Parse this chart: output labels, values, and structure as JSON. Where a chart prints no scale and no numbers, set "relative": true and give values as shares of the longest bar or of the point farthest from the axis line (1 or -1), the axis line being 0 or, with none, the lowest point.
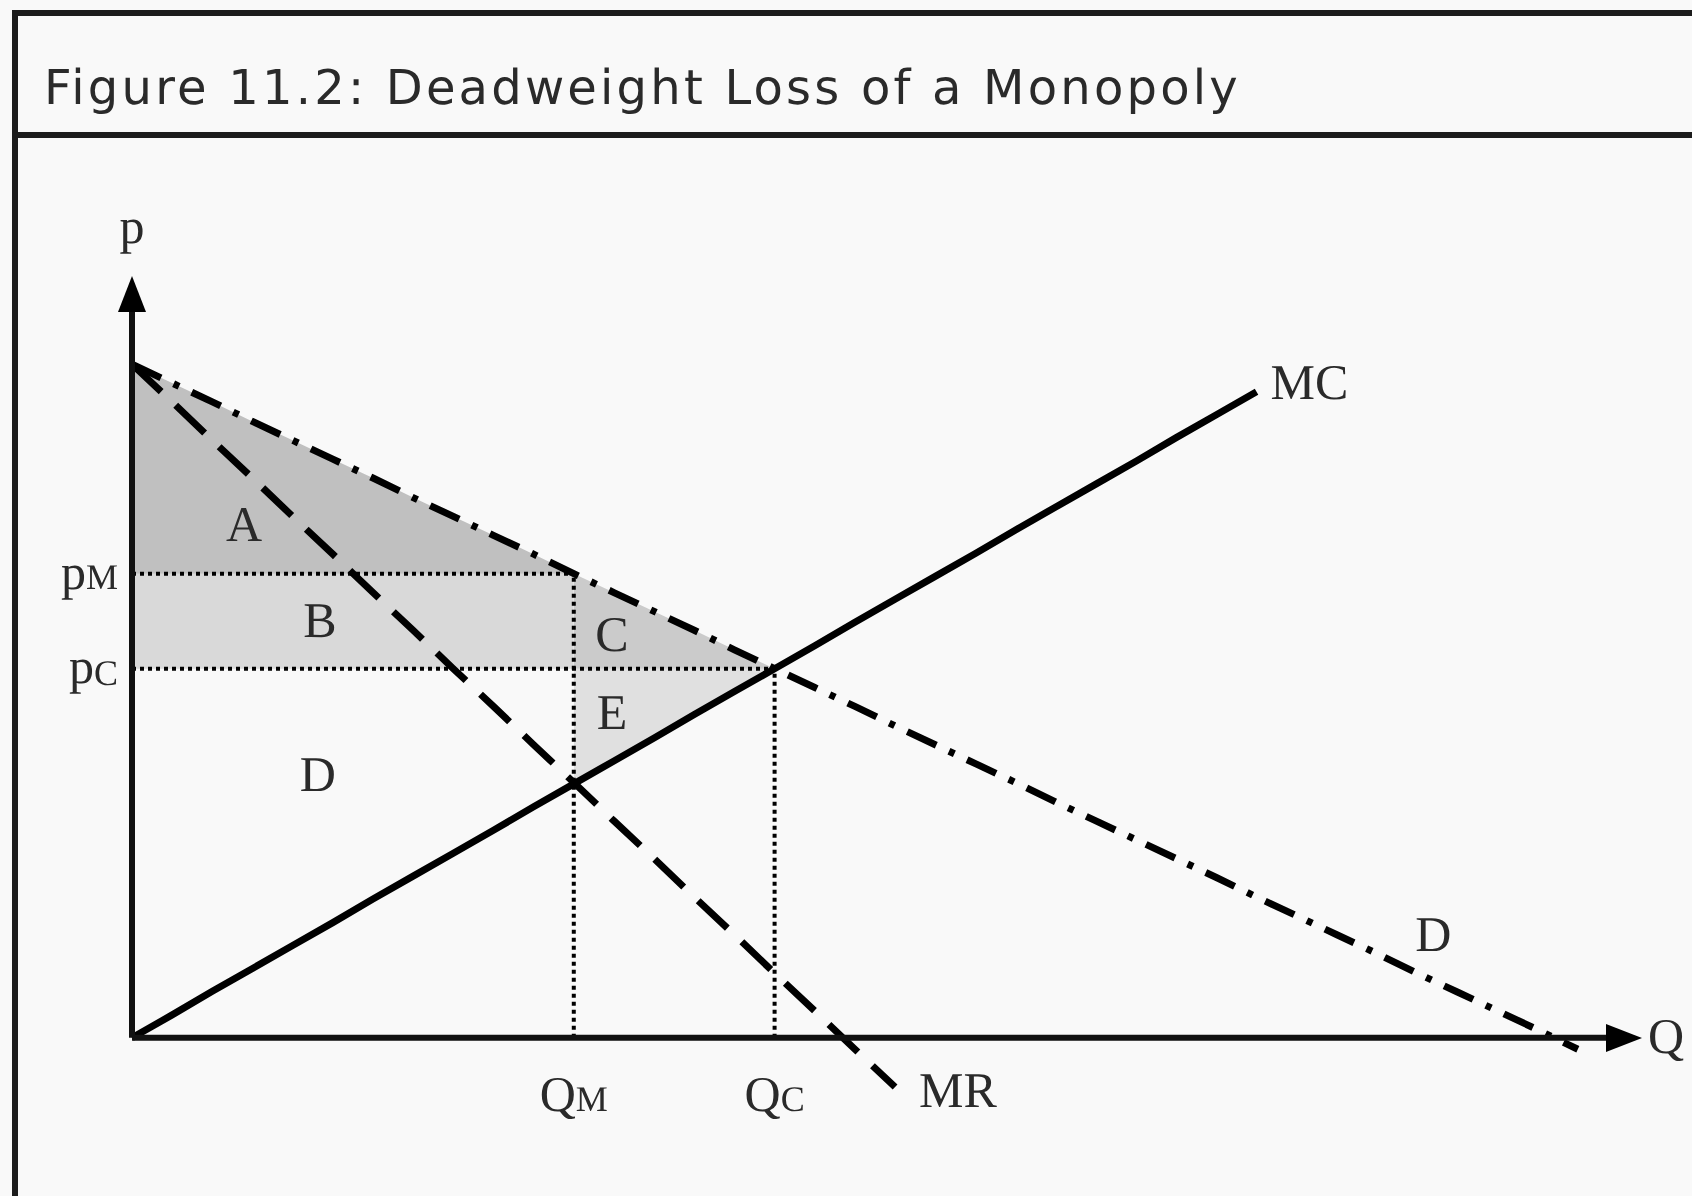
{
  "chart_data": {
    "type": "line",
    "title": "Figure 11.2: Deadweight Loss of a Monopoly",
    "xlabel": "Q",
    "ylabel": "p",
    "relative": true,
    "tick_labels": "x",
    "categories": [
      null,
      null,
      null,
      null,
      null,
      null,
      null,
      null,
      null,
      null,
      null,
      "Q$_{M}$",
      null,
      null,
      null,
      null,
      "Q$_{C}$",
      null,
      null,
      null,
      null,
      null,
      null,
      null,
      null,
      null,
      null,
      null,
      null,
      null,
      null,
      null,
      null,
      null,
      null,
      null,
      null,
      null
    ],
    "series": [
      {
        "name": "D",
        "color": "#000000",
        "line_style": "dashdot",
        "values": [
          1,
          0.972,
          0.944,
          0.915,
          0.887,
          0.859,
          0.831,
          0.802,
          0.774,
          0.746,
          0.718,
          0.689,
          0.661,
          0.633,
          0.605,
          0.576,
          0.548,
          0.52,
          0.492,
          0.463,
          0.435,
          0.407,
          0.379,
          0.35,
          0.322,
          0.294,
          0.266,
          0.238,
          0.209,
          0.181,
          0.153,
          0.125,
          0.096,
          0.068,
          0.04,
          0.012,
          -0.017,
          null
        ]
      },
      {
        "name": "MR",
        "color": "#000000",
        "line_style": "dashed",
        "values": [
          1,
          0.944,
          0.887,
          0.831,
          0.774,
          0.718,
          0.661,
          0.605,
          0.548,
          0.492,
          0.435,
          0.379,
          0.322,
          0.266,
          0.209,
          0.153,
          0.096,
          0.04,
          -0.017,
          -0.073,
          null,
          null,
          null,
          null,
          null,
          null,
          null,
          null,
          null,
          null,
          null,
          null,
          null,
          null,
          null,
          null,
          null,
          null
        ]
      },
      {
        "name": "MC",
        "color": "#000000",
        "line_style": "solid",
        "values": [
          0,
          0.034,
          0.069,
          0.103,
          0.137,
          0.171,
          0.206,
          0.24,
          0.274,
          0.308,
          0.343,
          0.377,
          0.411,
          0.445,
          0.48,
          0.514,
          0.548,
          0.582,
          0.617,
          0.651,
          0.685,
          0.719,
          0.754,
          0.788,
          0.822,
          0.856,
          0.891,
          0.925,
          0.959,
          null,
          null,
          null,
          null,
          null,
          null,
          null,
          null,
          null
        ]
      },
      {
        "name": "p$_{M}$",
        "color": "#000000",
        "line_style": "dotted",
        "values": [
          0.689,
          0.689,
          0.689,
          0.689,
          0.689,
          0.689,
          0.689,
          0.689,
          0.689,
          0.689,
          0.689,
          0.689,
          null,
          null,
          null,
          null,
          null,
          null,
          null,
          null,
          null,
          null,
          null,
          null,
          null,
          null,
          null,
          null,
          null,
          null,
          null,
          null,
          null,
          null,
          null,
          null,
          null,
          null
        ]
      },
      {
        "name": "p$_{C}$",
        "color": "#000000",
        "line_style": "dotted",
        "values": [
          0.548,
          0.548,
          0.548,
          0.548,
          0.548,
          0.548,
          0.548,
          0.548,
          0.548,
          0.548,
          0.548,
          0.548,
          0.548,
          0.548,
          0.548,
          0.548,
          0.548,
          null,
          null,
          null,
          null,
          null,
          null,
          null,
          null,
          null,
          null,
          null,
          null,
          null,
          null,
          null,
          null,
          null,
          null,
          null,
          null,
          null
        ]
      },
      {
        "type": "area",
        "color": "#c0c0c0",
        "values": [
          null,
          null,
          null,
          null,
          null,
          null,
          null,
          null,
          null,
          null,
          null,
          null,
          null,
          null,
          null,
          null,
          null,
          null,
          null,
          null,
          null,
          null,
          null,
          null,
          null,
          null,
          null,
          null,
          null,
          null,
          null,
          null,
          null,
          null,
          null,
          null,
          null,
          null
        ],
        "upper": [
          1,
          0.972,
          0.944,
          0.915,
          0.887,
          0.859,
          0.831,
          0.802,
          0.774,
          0.746,
          0.718,
          0.689,
          null,
          null,
          null,
          null,
          null,
          null,
          null,
          null,
          null,
          null,
          null,
          null,
          null,
          null,
          null,
          null,
          null,
          null,
          null,
          null,
          null,
          null,
          null,
          null,
          null,
          null
        ],
        "lower": [
          0.689,
          0.689,
          0.689,
          0.689,
          0.689,
          0.689,
          0.689,
          0.689,
          0.689,
          0.689,
          0.689,
          0.689,
          null,
          null,
          null,
          null,
          null,
          null,
          null,
          null,
          null,
          null,
          null,
          null,
          null,
          null,
          null,
          null,
          null,
          null,
          null,
          null,
          null,
          null,
          null,
          null,
          null,
          null
        ]
      },
      {
        "type": "area",
        "color": "#d9d9d9",
        "values": [
          null,
          null,
          null,
          null,
          null,
          null,
          null,
          null,
          null,
          null,
          null,
          null,
          null,
          null,
          null,
          null,
          null,
          null,
          null,
          null,
          null,
          null,
          null,
          null,
          null,
          null,
          null,
          null,
          null,
          null,
          null,
          null,
          null,
          null,
          null,
          null,
          null,
          null
        ],
        "upper": [
          0.689,
          0.689,
          0.689,
          0.689,
          0.689,
          0.689,
          0.689,
          0.689,
          0.689,
          0.689,
          0.689,
          0.689,
          null,
          null,
          null,
          null,
          null,
          null,
          null,
          null,
          null,
          null,
          null,
          null,
          null,
          null,
          null,
          null,
          null,
          null,
          null,
          null,
          null,
          null,
          null,
          null,
          null,
          null
        ],
        "lower": [
          0.548,
          0.548,
          0.548,
          0.548,
          0.548,
          0.548,
          0.548,
          0.548,
          0.548,
          0.548,
          0.548,
          0.548,
          null,
          null,
          null,
          null,
          null,
          null,
          null,
          null,
          null,
          null,
          null,
          null,
          null,
          null,
          null,
          null,
          null,
          null,
          null,
          null,
          null,
          null,
          null,
          null,
          null,
          null
        ]
      },
      {
        "type": "area",
        "color": "#cbcbcb",
        "values": [
          null,
          null,
          null,
          null,
          null,
          null,
          null,
          null,
          null,
          null,
          null,
          null,
          null,
          null,
          null,
          null,
          null,
          null,
          null,
          null,
          null,
          null,
          null,
          null,
          null,
          null,
          null,
          null,
          null,
          null,
          null,
          null,
          null,
          null,
          null,
          null,
          null,
          null
        ],
        "upper": [
          null,
          null,
          null,
          null,
          null,
          null,
          null,
          null,
          null,
          null,
          null,
          0.689,
          0.661,
          0.633,
          0.605,
          0.576,
          0.548,
          null,
          null,
          null,
          null,
          null,
          null,
          null,
          null,
          null,
          null,
          null,
          null,
          null,
          null,
          null,
          null,
          null,
          null,
          null,
          null,
          null
        ],
        "lower": [
          null,
          null,
          null,
          null,
          null,
          null,
          null,
          null,
          null,
          null,
          null,
          0.548,
          0.548,
          0.548,
          0.548,
          0.548,
          0.548,
          null,
          null,
          null,
          null,
          null,
          null,
          null,
          null,
          null,
          null,
          null,
          null,
          null,
          null,
          null,
          null,
          null,
          null,
          null,
          null,
          null
        ]
      },
      {
        "type": "area",
        "color": "#e0e0e0",
        "values": [
          null,
          null,
          null,
          null,
          null,
          null,
          null,
          null,
          null,
          null,
          null,
          null,
          null,
          null,
          null,
          null,
          null,
          null,
          null,
          null,
          null,
          null,
          null,
          null,
          null,
          null,
          null,
          null,
          null,
          null,
          null,
          null,
          null,
          null,
          null,
          null,
          null,
          null
        ],
        "upper": [
          null,
          null,
          null,
          null,
          null,
          null,
          null,
          null,
          null,
          null,
          null,
          0.548,
          0.548,
          0.548,
          0.548,
          0.548,
          0.548,
          null,
          null,
          null,
          null,
          null,
          null,
          null,
          null,
          null,
          null,
          null,
          null,
          null,
          null,
          null,
          null,
          null,
          null,
          null,
          null,
          null
        ],
        "lower": [
          null,
          null,
          null,
          null,
          null,
          null,
          null,
          null,
          null,
          null,
          null,
          0.377,
          0.411,
          0.445,
          0.48,
          0.514,
          0.548,
          null,
          null,
          null,
          null,
          null,
          null,
          null,
          null,
          null,
          null,
          null,
          null,
          null,
          null,
          null,
          null,
          null,
          null,
          null,
          null,
          null
        ]
      }
    ],
    "ref_lines": [
      {
        "axis": "x",
        "value": "Q$_{M}$",
        "line_style": "dotted"
      },
      {
        "axis": "x",
        "value": "Q$_{C}$",
        "line_style": "dotted"
      }
    ],
    "annotations": [
      "A",
      "B",
      "C",
      "E",
      "D"
    ]
  }
}
